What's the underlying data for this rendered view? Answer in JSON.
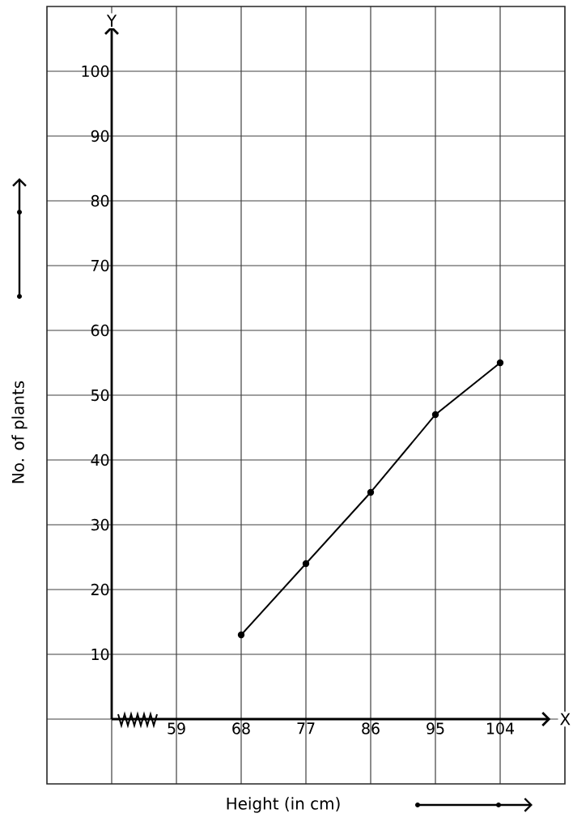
{
  "chart_data": {
    "type": "line",
    "xlabel": "Height (in cm)",
    "ylabel": "No. of plants",
    "annotations": [
      "Y",
      "X"
    ],
    "x": [
      68,
      77,
      86,
      95,
      104
    ],
    "series": [
      {
        "color": "#000000",
        "values": [
          13,
          24,
          35,
          47,
          55
        ]
      }
    ],
    "xlim": [
      41,
      113
    ],
    "xticks": [
      {
        "value": 50,
        "label": null
      },
      59,
      68,
      77,
      86,
      95,
      104
    ],
    "ylim": [
      -10,
      110
    ],
    "yticks": [
      {
        "value": 0,
        "label": null
      },
      10,
      20,
      30,
      40,
      50,
      60,
      70,
      80,
      90,
      100
    ],
    "grid": true,
    "marker": "circle",
    "line_style": "solid"
  }
}
